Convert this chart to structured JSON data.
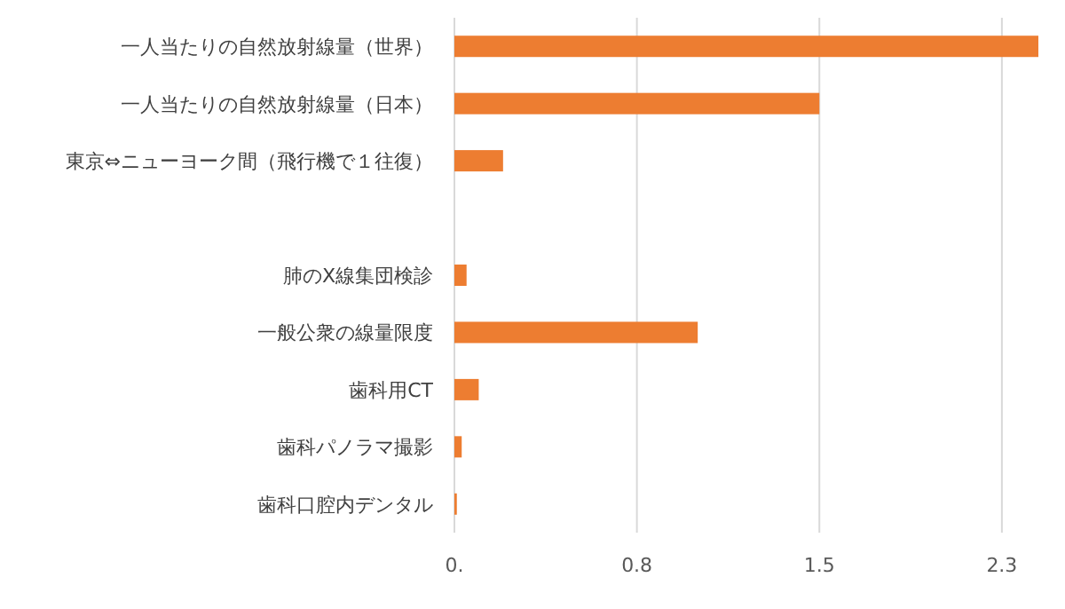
{
  "chart_data": {
    "type": "bar",
    "orientation": "horizontal",
    "categories": [
      "一人当たりの自然放射線量（世界）",
      "一人当たりの自然放射線量（日本）",
      "東京⇔ニューヨーク間（飛行機で１往復）",
      null,
      "肺のX線集団検診",
      "一般公衆の線量限度",
      "歯科用CT",
      "歯科パノラマ撮影",
      "歯科口腔内デンタル"
    ],
    "values": [
      2.4,
      1.5,
      0.2,
      null,
      0.05,
      1.0,
      0.1,
      0.03,
      0.01
    ],
    "color": "#ed7d31",
    "xlim": [
      0,
      2.4
    ],
    "xticks": [
      {
        "value": 0,
        "label": "0."
      },
      {
        "value": 0.75,
        "label": "0.8"
      },
      {
        "value": 1.5,
        "label": "1.5"
      },
      {
        "value": 2.25,
        "label": "2.3"
      }
    ],
    "grid": "x"
  }
}
